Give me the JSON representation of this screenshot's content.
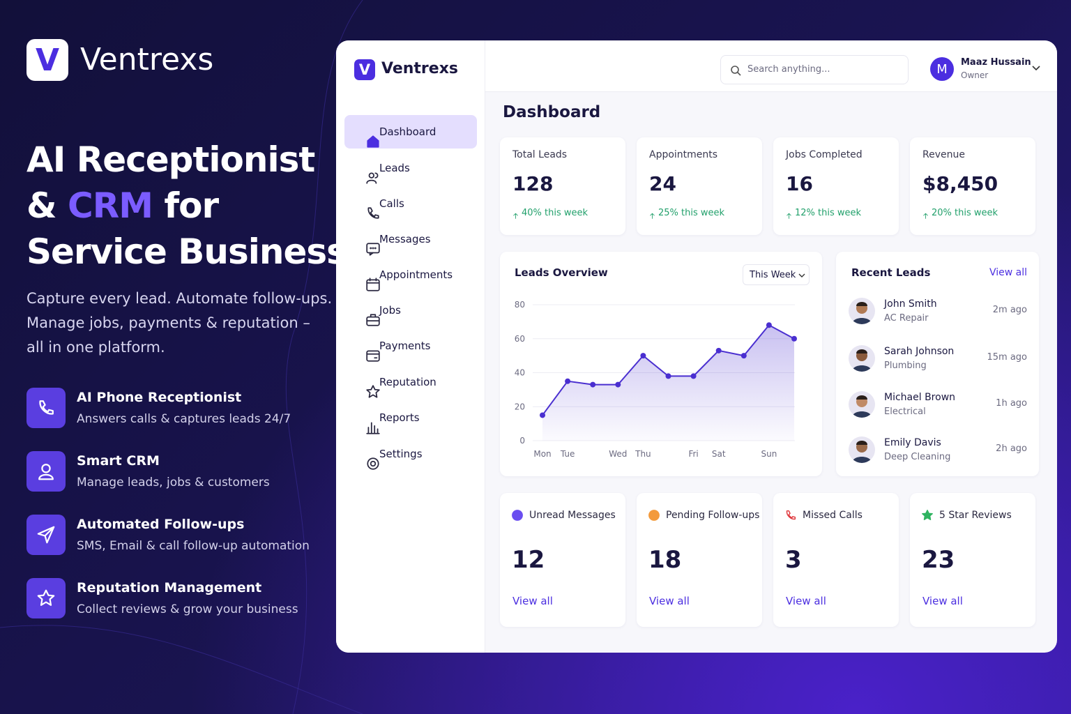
{
  "brand": {
    "logo_letter": "V",
    "name": "Ventrexs"
  },
  "hero": {
    "title_line1": "AI Receptionist",
    "title_amp": "&",
    "title_highlight": "CRM",
    "title_for": "for",
    "title_line3": "Service Businesses",
    "subtitle_lines": [
      "Capture every lead. Automate follow-ups.",
      "Manage jobs, payments & reputation –",
      "all in one platform."
    ],
    "features": [
      {
        "title": "AI Phone Receptionist",
        "description": "Answers calls & captures leads 24/7"
      },
      {
        "title": "Smart CRM",
        "description": "Manage leads, jobs & customers"
      },
      {
        "title": "Automated Follow-ups",
        "description": "SMS, Email & call follow-up automation"
      },
      {
        "title": "Reputation Management",
        "description": "Collect reviews & grow your business"
      }
    ]
  },
  "app": {
    "logo_letter": "V",
    "brand": "Ventrexs",
    "search_placeholder": "Search anything...",
    "user": {
      "initial": "M",
      "name": "Maaz Hussain",
      "role": "Owner"
    },
    "nav": [
      "Dashboard",
      "Leads",
      "Calls",
      "Messages",
      "Appointments",
      "Jobs",
      "Payments",
      "Reputation",
      "Reports",
      "Settings"
    ],
    "page_title": "Dashboard",
    "stats": [
      {
        "label": "Total Leads",
        "value": 128,
        "change": "40% this week"
      },
      {
        "label": "Appointments",
        "value": 24,
        "change": "25% this week"
      },
      {
        "label": "Jobs Completed",
        "value": 16,
        "change": "12% this week"
      },
      {
        "label": "Revenue",
        "value": "$8,450",
        "change": "20% this week"
      }
    ],
    "recent_leads": {
      "title": "Recent Leads",
      "view_all": "View all",
      "items": [
        {
          "name": "John Smith",
          "service": "AC Repair",
          "time": "2m ago"
        },
        {
          "name": "Sarah Johnson",
          "service": "Plumbing",
          "time": "15m ago"
        },
        {
          "name": "Michael Brown",
          "service": "Electrical",
          "time": "1h ago"
        },
        {
          "name": "Emily Davis",
          "service": "Deep Cleaning",
          "time": "2h ago"
        }
      ]
    },
    "summary": [
      {
        "label": "Unread Messages",
        "value": 12,
        "link": "View all"
      },
      {
        "label": "Pending Follow-ups",
        "value": 18,
        "link": "View all"
      },
      {
        "label": "Missed Calls",
        "value": 3,
        "link": "View all"
      },
      {
        "label": "5 Star Reviews",
        "value": 23,
        "link": "View all"
      }
    ]
  },
  "chart_data": {
    "type": "line",
    "title": "Leads Overview",
    "period": "This Week",
    "categories": [
      "Mon",
      "Tue",
      null,
      "Wed",
      "Thu",
      null,
      "Fri",
      "Sat",
      null,
      "Sun",
      null
    ],
    "values": [
      15,
      35,
      33,
      33,
      50,
      38,
      38,
      53,
      50,
      68,
      60
    ],
    "color": "#4a2fd0",
    "ylim": [
      0,
      80
    ],
    "yticks": [
      0,
      20,
      40,
      60,
      80
    ],
    "grid": true
  }
}
